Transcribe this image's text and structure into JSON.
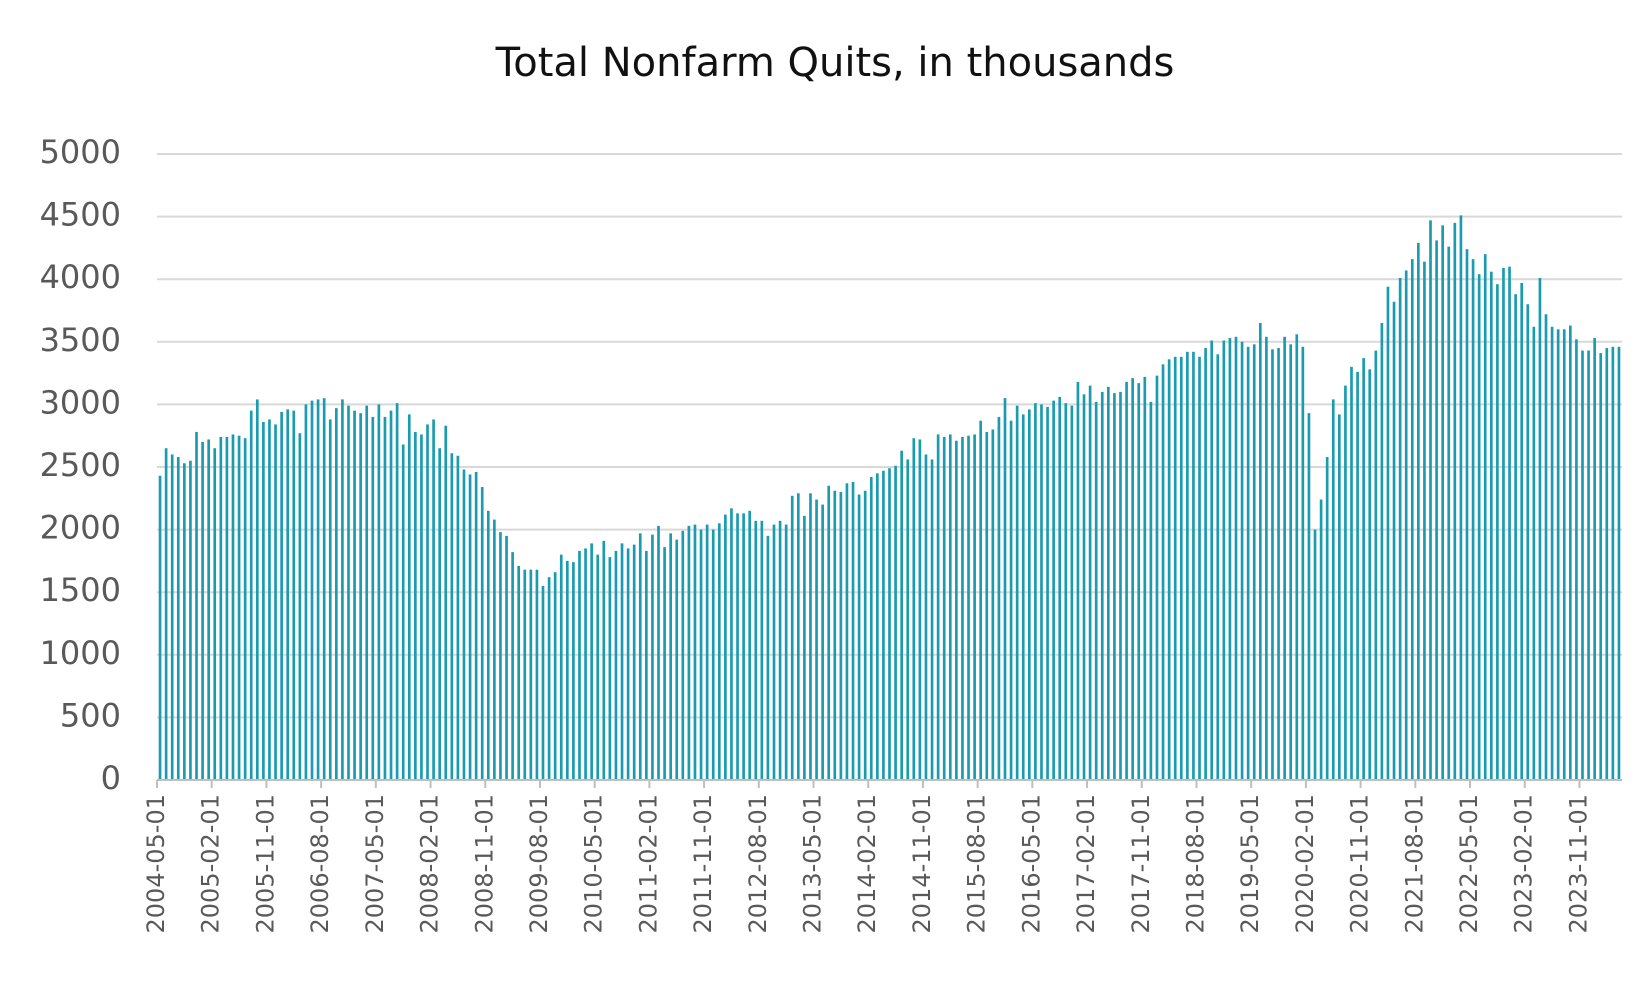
{
  "chart_data": {
    "type": "bar",
    "title": "Total Nonfarm Quits, in thousands",
    "categories": [
      "2004-05-01",
      null,
      null,
      null,
      null,
      null,
      null,
      null,
      null,
      "2005-02-01",
      null,
      null,
      null,
      null,
      null,
      null,
      null,
      null,
      "2005-11-01",
      null,
      null,
      null,
      null,
      null,
      null,
      null,
      null,
      "2006-08-01",
      null,
      null,
      null,
      null,
      null,
      null,
      null,
      null,
      "2007-05-01",
      null,
      null,
      null,
      null,
      null,
      null,
      null,
      null,
      "2008-02-01",
      null,
      null,
      null,
      null,
      null,
      null,
      null,
      null,
      "2008-11-01",
      null,
      null,
      null,
      null,
      null,
      null,
      null,
      null,
      "2009-08-01",
      null,
      null,
      null,
      null,
      null,
      null,
      null,
      null,
      "2010-05-01",
      null,
      null,
      null,
      null,
      null,
      null,
      null,
      null,
      "2011-02-01",
      null,
      null,
      null,
      null,
      null,
      null,
      null,
      null,
      "2011-11-01",
      null,
      null,
      null,
      null,
      null,
      null,
      null,
      null,
      "2012-08-01",
      null,
      null,
      null,
      null,
      null,
      null,
      null,
      null,
      "2013-05-01",
      null,
      null,
      null,
      null,
      null,
      null,
      null,
      null,
      "2014-02-01",
      null,
      null,
      null,
      null,
      null,
      null,
      null,
      null,
      "2014-11-01",
      null,
      null,
      null,
      null,
      null,
      null,
      null,
      null,
      "2015-08-01",
      null,
      null,
      null,
      null,
      null,
      null,
      null,
      null,
      "2016-05-01",
      null,
      null,
      null,
      null,
      null,
      null,
      null,
      null,
      "2017-02-01",
      null,
      null,
      null,
      null,
      null,
      null,
      null,
      null,
      "2017-11-01",
      null,
      null,
      null,
      null,
      null,
      null,
      null,
      null,
      "2018-08-01",
      null,
      null,
      null,
      null,
      null,
      null,
      null,
      null,
      "2019-05-01",
      null,
      null,
      null,
      null,
      null,
      null,
      null,
      null,
      "2020-02-01",
      null,
      null,
      null,
      null,
      null,
      null,
      null,
      null,
      "2020-11-01",
      null,
      null,
      null,
      null,
      null,
      null,
      null,
      null,
      "2021-08-01",
      null,
      null,
      null,
      null,
      null,
      null,
      null,
      null,
      "2022-05-01",
      null,
      null,
      null,
      null,
      null,
      null,
      null,
      null,
      "2023-02-01",
      null,
      null,
      null,
      null,
      null,
      null,
      null,
      null,
      "2023-11-01",
      null,
      null,
      null,
      null,
      null,
      null
    ],
    "values": [
      2430,
      2650,
      2600,
      2580,
      2530,
      2550,
      2780,
      2700,
      2720,
      2650,
      2740,
      2740,
      2760,
      2750,
      2730,
      2950,
      3040,
      2860,
      2880,
      2840,
      2940,
      2960,
      2950,
      2770,
      3000,
      3030,
      3040,
      3050,
      2880,
      2970,
      3040,
      2990,
      2950,
      2930,
      2990,
      2900,
      3000,
      2900,
      2950,
      3010,
      2680,
      2920,
      2780,
      2760,
      2840,
      2880,
      2650,
      2830,
      2610,
      2590,
      2480,
      2440,
      2460,
      2340,
      2150,
      2080,
      1980,
      1950,
      1820,
      1710,
      1680,
      1680,
      1680,
      1550,
      1620,
      1660,
      1800,
      1750,
      1740,
      1830,
      1850,
      1890,
      1800,
      1910,
      1780,
      1830,
      1890,
      1850,
      1880,
      1970,
      1830,
      1960,
      2030,
      1860,
      1970,
      1920,
      1990,
      2030,
      2040,
      2000,
      2040,
      2000,
      2050,
      2120,
      2170,
      2130,
      2130,
      2150,
      2070,
      2070,
      1950,
      2040,
      2070,
      2040,
      2270,
      2290,
      2110,
      2290,
      2240,
      2200,
      2350,
      2310,
      2300,
      2370,
      2380,
      2280,
      2310,
      2420,
      2450,
      2470,
      2490,
      2510,
      2630,
      2560,
      2730,
      2720,
      2600,
      2560,
      2760,
      2740,
      2760,
      2710,
      2740,
      2750,
      2760,
      2870,
      2780,
      2800,
      2900,
      3050,
      2870,
      2990,
      2920,
      2960,
      3010,
      3000,
      2980,
      3030,
      3060,
      3010,
      2990,
      3180,
      3080,
      3150,
      3020,
      3100,
      3140,
      3090,
      3100,
      3180,
      3210,
      3170,
      3220,
      3020,
      3230,
      3320,
      3360,
      3380,
      3380,
      3420,
      3420,
      3380,
      3450,
      3510,
      3400,
      3510,
      3530,
      3540,
      3500,
      3460,
      3480,
      3650,
      3540,
      3440,
      3450,
      3540,
      3480,
      3560,
      3460,
      2930,
      2000,
      2240,
      2580,
      3040,
      2920,
      3150,
      3300,
      3260,
      3370,
      3280,
      3430,
      3650,
      3940,
      3820,
      4010,
      4070,
      4160,
      4290,
      4140,
      4470,
      4310,
      4430,
      4260,
      4450,
      4510,
      4240,
      4160,
      4040,
      4200,
      4060,
      3960,
      4090,
      4100,
      3880,
      3970,
      3800,
      3620,
      4010,
      3720,
      3620,
      3600,
      3600,
      3630,
      3520,
      3430,
      3430,
      3530,
      3410,
      3450,
      3460,
      3460
    ],
    "color": "#1a9bb0",
    "ylim": [
      0,
      5000
    ],
    "yticks": [
      0,
      500,
      1000,
      1500,
      2000,
      2500,
      3000,
      3500,
      4000,
      4500,
      5000
    ],
    "grid": true
  }
}
